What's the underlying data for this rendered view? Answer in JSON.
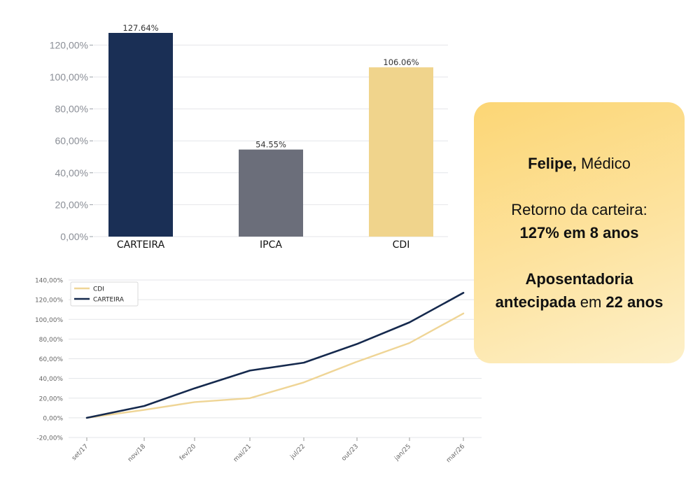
{
  "chart_data": [
    {
      "type": "bar",
      "categories": [
        "CARTEIRA",
        "IPCA",
        "CDI"
      ],
      "values": [
        127.64,
        54.55,
        106.06
      ],
      "data_labels": [
        "127.64%",
        "54.55%",
        "106.06%"
      ],
      "yticks": [
        "0,00%",
        "20,00%",
        "40,00%",
        "60,00%",
        "80,00%",
        "100,00%",
        "120,00%"
      ],
      "ylim": [
        0,
        127.64
      ],
      "grid": true,
      "colors": [
        "#1a2f55",
        "#6b6e7a",
        "#f0d48c"
      ]
    },
    {
      "type": "line",
      "x": [
        "set/17",
        "nov/18",
        "fev/20",
        "mai/21",
        "jul/22",
        "out/23",
        "jan/25",
        "mar/26"
      ],
      "xticks": [
        "set/17",
        "nov/18",
        "fev/20",
        "mai/21",
        "jul/22",
        "out/23",
        "jan/25",
        "mar/26"
      ],
      "yticks": [
        "-20,00%",
        "0,00%",
        "20,00%",
        "40,00%",
        "60,00%",
        "80,00%",
        "100,00%",
        "120,00%",
        "140,00%"
      ],
      "ylim": [
        -20,
        140
      ],
      "grid": true,
      "legend_position": "top-left",
      "series": [
        {
          "name": "CDI",
          "color": "#efd596",
          "values": [
            0,
            8,
            16,
            20,
            36,
            57,
            76,
            106
          ]
        },
        {
          "name": "CARTEIRA",
          "color": "#15294d",
          "values": [
            0,
            12,
            30,
            48,
            56,
            75,
            97,
            127
          ]
        }
      ]
    }
  ],
  "card": {
    "name": "Felipe,",
    "profession": "Médico",
    "return_label": "Retorno da carteira:",
    "return_value": "127% em 8 anos",
    "retire_strong": "Aposentadoria",
    "retire_strong2": "antecipada",
    "retire_mid": "em",
    "retire_years": "22 anos"
  }
}
